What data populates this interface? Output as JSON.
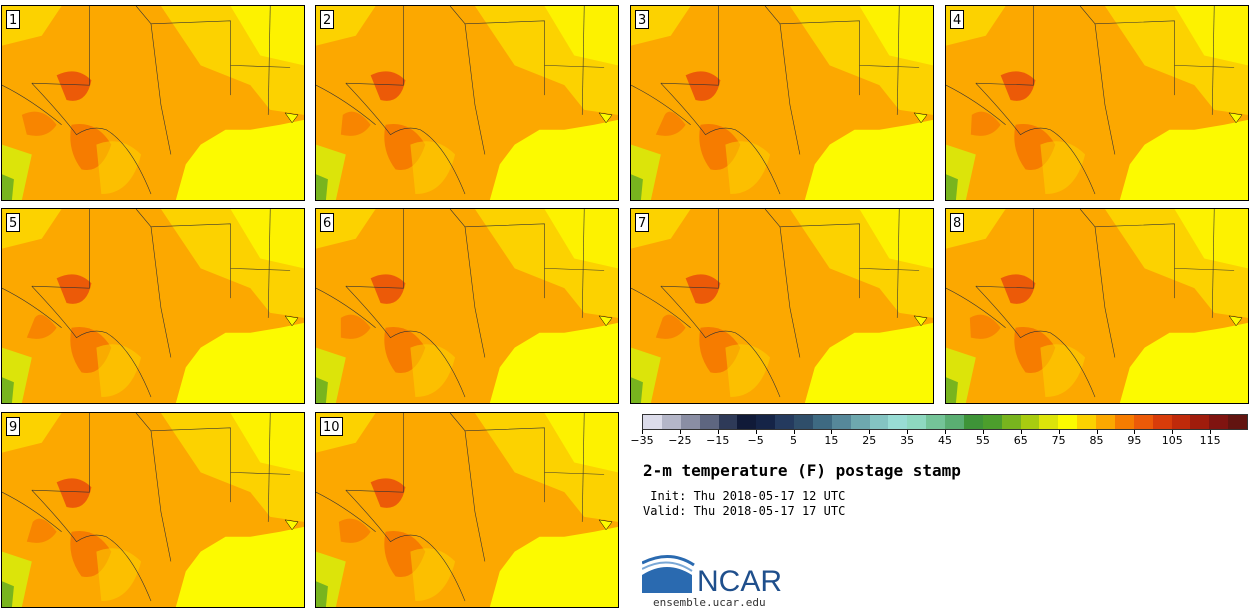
{
  "panels": [
    {
      "label": "1"
    },
    {
      "label": "2"
    },
    {
      "label": "3"
    },
    {
      "label": "4"
    },
    {
      "label": "5"
    },
    {
      "label": "6"
    },
    {
      "label": "7"
    },
    {
      "label": "8"
    },
    {
      "label": "9"
    },
    {
      "label": "10"
    }
  ],
  "colorbar": {
    "colors": [
      "#dcdcea",
      "#b4b6c8",
      "#8a8ea4",
      "#5e6680",
      "#2e3a58",
      "#101a38",
      "#152447",
      "#243a5e",
      "#2f4e6a",
      "#3e6a82",
      "#56889a",
      "#6ea8ae",
      "#84c4c2",
      "#98dcd4",
      "#8ed8c0",
      "#74c498",
      "#5aae72",
      "#3e9438",
      "#4c9e2c",
      "#78b41e",
      "#a8cc10",
      "#dce40a",
      "#fcfa00",
      "#fcd200",
      "#fca800",
      "#f67c00",
      "#ec5a08",
      "#d83c0a",
      "#c02a0a",
      "#a01c0c",
      "#801410",
      "#621410"
    ],
    "tick_labels": [
      "−35",
      "−25",
      "−15",
      "−5",
      "5",
      "15",
      "25",
      "35",
      "45",
      "55",
      "65",
      "75",
      "85",
      "95",
      "105",
      "115"
    ]
  },
  "title": "2-m temperature (F) postage stamp",
  "init": " Init: Thu 2018-05-17 12 UTC",
  "valid": "Valid: Thu 2018-05-17 17 UTC",
  "logo_text": "NCAR",
  "url": "ensemble.ucar.edu"
}
